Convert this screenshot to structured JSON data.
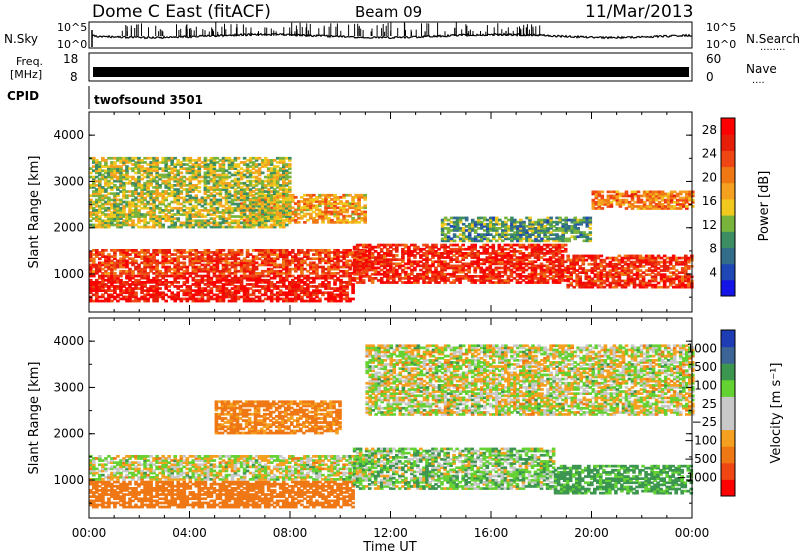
{
  "header": {
    "station": "Dome C East (fitACF)",
    "beam": "Beam 09",
    "date": "11/Mar/2013"
  },
  "strip_labels": {
    "nsky": "N.Sky",
    "nsearch": "N.Search",
    "nsearch_dots": "........",
    "freq_line1": "Freq.",
    "freq_line2": "[MHz]",
    "nave": "Nave",
    "nave_dots": "....",
    "cpid": "CPID",
    "cpid_value": "twofsound 3501",
    "noise_ticks_left": [
      "10^5",
      "10^0"
    ],
    "noise_ticks_right": [
      "10^5",
      "10^0"
    ],
    "freq_ticks": [
      "18",
      "8"
    ],
    "nave_ticks": [
      "60",
      "0"
    ]
  },
  "colors": {
    "power_scale": [
      "#1414e6",
      "#1e46b4",
      "#326e8c",
      "#3c8c64",
      "#78b43c",
      "#f0c81e",
      "#f5a01e",
      "#f07814",
      "#f04614",
      "#e61e0a",
      "#ff0000"
    ],
    "velocity_scale": [
      "#ff0000",
      "#f04614",
      "#f07814",
      "#f5a01e",
      "#c8c8c8",
      "#c8c8c8",
      "#64d232",
      "#3c9650",
      "#3c6496",
      "#1e3cb4"
    ]
  },
  "chart_data": [
    {
      "type": "heatmap",
      "title": "",
      "xlabel": "",
      "ylabel": "Slant Range [km]",
      "colorbar_label": "Power [dB]",
      "colorbar_ticks": [
        "4",
        "8",
        "12",
        "16",
        "20",
        "24",
        "28"
      ],
      "x_ticks": [
        "00:00",
        "04:00",
        "08:00",
        "12:00",
        "16:00",
        "20:00",
        "00:00"
      ],
      "y_ticks": [
        "1000",
        "2000",
        "3000",
        "4000"
      ],
      "xlim_hours": [
        0,
        24
      ],
      "ylim_km": [
        180,
        4500
      ],
      "clim": [
        0,
        30
      ],
      "echo_bands": [
        {
          "hours": [
            0,
            10.5
          ],
          "range_km": [
            400,
            950
          ],
          "level": 27
        },
        {
          "hours": [
            0,
            11
          ],
          "range_km": [
            1000,
            1500
          ],
          "level": 24
        },
        {
          "hours": [
            10.5,
            19
          ],
          "range_km": [
            800,
            1650
          ],
          "level": 26
        },
        {
          "hours": [
            19,
            24
          ],
          "range_km": [
            700,
            1400
          ],
          "level": 25
        },
        {
          "hours": [
            6,
            11
          ],
          "range_km": [
            2100,
            2700
          ],
          "level": 18
        },
        {
          "hours": [
            0,
            8
          ],
          "range_km": [
            2000,
            3500
          ],
          "level": 14
        },
        {
          "hours": [
            20,
            24
          ],
          "range_km": [
            2400,
            2800
          ],
          "level": 20
        },
        {
          "hours": [
            14,
            20
          ],
          "range_km": [
            1700,
            2200
          ],
          "level": 10
        }
      ]
    },
    {
      "type": "heatmap",
      "title": "",
      "xlabel": "Time UT",
      "ylabel": "Slant Range [km]",
      "colorbar_label": "Velocity [m s⁻¹]",
      "colorbar_ticks": [
        "1000",
        "500",
        "100",
        "25",
        "−25",
        "−100",
        "−500",
        "−1000"
      ],
      "x_ticks": [
        "00:00",
        "04:00",
        "08:00",
        "12:00",
        "16:00",
        "20:00",
        "00:00"
      ],
      "y_ticks": [
        "1000",
        "2000",
        "3000",
        "4000"
      ],
      "xlim_hours": [
        0,
        24
      ],
      "ylim_km": [
        180,
        4500
      ],
      "clim": [
        -1000,
        1000
      ],
      "echo_bands": [
        {
          "hours": [
            0,
            10.5
          ],
          "range_km": [
            400,
            950
          ],
          "velocity": -300
        },
        {
          "hours": [
            0,
            11
          ],
          "range_km": [
            1000,
            1500
          ],
          "velocity": 0
        },
        {
          "hours": [
            10.5,
            18.5
          ],
          "range_km": [
            800,
            1700
          ],
          "velocity": 60
        },
        {
          "hours": [
            18.5,
            24
          ],
          "range_km": [
            700,
            1300
          ],
          "velocity": 150
        },
        {
          "hours": [
            5,
            10
          ],
          "range_km": [
            2000,
            2700
          ],
          "velocity": -150
        },
        {
          "hours": [
            11,
            24
          ],
          "range_km": [
            2400,
            3900
          ],
          "velocity": 0
        }
      ]
    }
  ]
}
